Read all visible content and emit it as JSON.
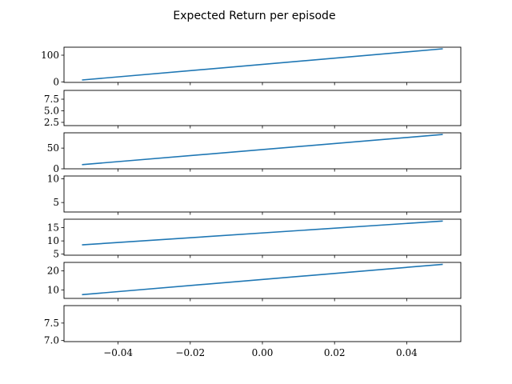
{
  "chart_data": {
    "type": "line",
    "title": "Expected Return per episode",
    "line_color": "#1f77b4",
    "xlim": [
      -0.055,
      0.055
    ],
    "x_ticks": [
      -0.04,
      -0.02,
      0.0,
      0.02,
      0.04
    ],
    "x_tick_labels": [
      "−0.04",
      "−0.02",
      "0.00",
      "0.02",
      "0.04"
    ],
    "panels": [
      {
        "ylim": [
          -2,
          130
        ],
        "y_ticks": [
          0,
          100
        ],
        "y_tick_labels": [
          "0",
          "100"
        ],
        "x": [
          -0.05,
          0.05
        ],
        "y": [
          7,
          124
        ]
      },
      {
        "ylim": [
          1.8,
          9.4
        ],
        "y_ticks": [
          2.5,
          5.0,
          7.5
        ],
        "y_tick_labels": [
          "2.5",
          "5.0",
          "7.5"
        ],
        "x": [],
        "y": []
      },
      {
        "ylim": [
          0,
          87
        ],
        "y_ticks": [
          0,
          50
        ],
        "y_tick_labels": [
          "0",
          "50"
        ],
        "x": [
          -0.05,
          0.05
        ],
        "y": [
          10,
          83
        ]
      },
      {
        "ylim": [
          3,
          10.6
        ],
        "y_ticks": [
          5,
          10
        ],
        "y_tick_labels": [
          "5",
          "10"
        ],
        "x": [],
        "y": []
      },
      {
        "ylim": [
          4.6,
          18.2
        ],
        "y_ticks": [
          5,
          10,
          15
        ],
        "y_tick_labels": [
          "5",
          "10",
          "15"
        ],
        "x": [
          -0.05,
          0.05
        ],
        "y": [
          8.5,
          17.5
        ]
      },
      {
        "ylim": [
          5.5,
          24.5
        ],
        "y_ticks": [
          10,
          20
        ],
        "y_tick_labels": [
          "10",
          "20"
        ],
        "x": [
          -0.05,
          0.05
        ],
        "y": [
          7.5,
          23.5
        ]
      },
      {
        "ylim": [
          6.97,
          8.0
        ],
        "y_ticks": [
          7.0,
          7.5
        ],
        "y_tick_labels": [
          "7.0",
          "7.5"
        ],
        "x": [],
        "y": []
      }
    ]
  }
}
